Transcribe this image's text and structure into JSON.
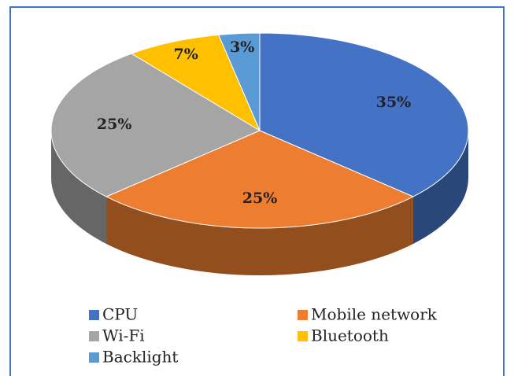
{
  "chart_data": {
    "type": "pie3d",
    "categories": [
      "CPU",
      "Mobile network",
      "Wi-Fi",
      "Bluetooth",
      "Backlight"
    ],
    "values": [
      35,
      25,
      25,
      7,
      3
    ],
    "value_labels": [
      "35%",
      "25%",
      "25%",
      "7%",
      "3%"
    ],
    "colors": [
      "#4472c4",
      "#ed7d31",
      "#a5a5a5",
      "#ffc000",
      "#5b9bd5"
    ],
    "legend": "bottom"
  }
}
